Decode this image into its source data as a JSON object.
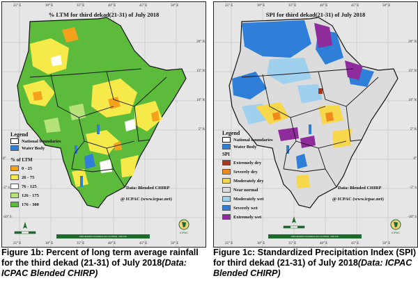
{
  "left_map": {
    "title": "% LTM  for third dekad(21-31)  of July 2018",
    "legend_title": "Legend",
    "boundary_label": "National boundaries",
    "water_label": "Water Body",
    "classes_title": "% of LTM",
    "classes": [
      {
        "label": "0 - 25",
        "color": "#f4a21c"
      },
      {
        "label": "26 - 75",
        "color": "#f6e94a"
      },
      {
        "label": "76 - 125",
        "color": "#ffffff"
      },
      {
        "label": "126 - 175",
        "color": "#b6e27a"
      },
      {
        "label": "176 - 300",
        "color": "#5dbb3c"
      }
    ],
    "data_source": "Data: Blended CHIRP",
    "credit": "@ ICPAC (www.icpac.net)",
    "footer_strip": "Administrative boundaries are not official - GIS Unit",
    "logo_text": "ICPAC"
  },
  "right_map": {
    "title": "SPI  for third dekad(21-31)  of July 2018",
    "legend_title": "Legend",
    "boundary_label": "National boundaries",
    "water_label": "Water Body",
    "classes_title": "SPI",
    "classes": [
      {
        "label": "Extremely dry",
        "color": "#a3381e"
      },
      {
        "label": "Severely dry",
        "color": "#f08a1a"
      },
      {
        "label": "Moderately dry",
        "color": "#f7d84a"
      },
      {
        "label": "Near normal",
        "color": "#dcdcdc"
      },
      {
        "label": "Moderately wet",
        "color": "#9fd0ee"
      },
      {
        "label": "Severely wet",
        "color": "#2f7ed8"
      },
      {
        "label": "Extremely wet",
        "color": "#8e2c9c"
      }
    ],
    "data_source": "Data: Blended CHIRP",
    "credit": "@ ICPAC (www.icpac.net)",
    "footer_strip": "Administrative boundaries are not official - GIS Unit",
    "logo_text": "ICPAC"
  },
  "axis": {
    "lon_ticks": [
      "25° E",
      "30° E",
      "35° E",
      "40° E",
      "45° E",
      "50° E"
    ],
    "lat_ticks": [
      "20° N",
      "15° N",
      "10° N",
      "5° N",
      "0°",
      "-5° S",
      "-10° S"
    ]
  },
  "captions": {
    "left_main": "Figure 1b: Percent of long term average rainfall for the third dekad (21-31) of July 2018",
    "left_source": "(Data: ICPAC Blended CHIRP)",
    "right_main": "Figure 1c: Standardized Precipitation Index (SPI) for third dekad (21-31) of July 2018",
    "right_source": "(Data: ICPAC Blended CHIRP)"
  },
  "colors": {
    "water": "#2f7ed8",
    "boundary": "#111111",
    "map_bg": "#e6e6e6",
    "strip": "#1d6b2c"
  }
}
